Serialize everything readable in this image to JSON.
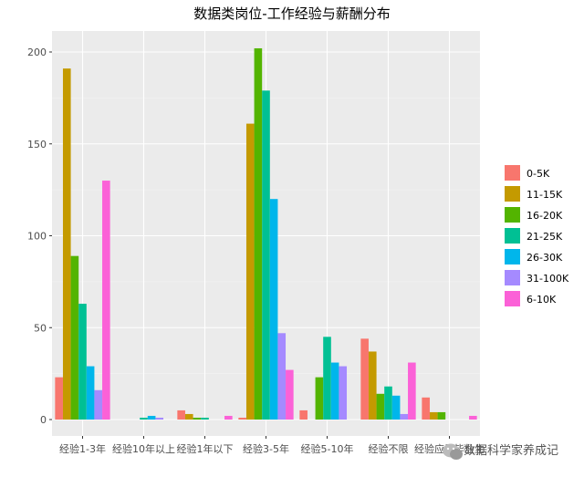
{
  "chart_data": {
    "type": "bar",
    "title": "数据类岗位-工作经验与薪酬分布",
    "xlabel": "",
    "ylabel": "",
    "ylim": [
      0,
      210
    ],
    "yticks": [
      0,
      50,
      100,
      150,
      200
    ],
    "categories": [
      "经验1-3年",
      "经验10年以上",
      "经验1年以下",
      "经验3-5年",
      "经验5-10年",
      "经验不限",
      "经验应届毕业生"
    ],
    "series": [
      {
        "name": "0-5K",
        "color": "#F8766D",
        "values": [
          23,
          0,
          5,
          1,
          5,
          44,
          12
        ]
      },
      {
        "name": "11-15K",
        "color": "#C49A00",
        "values": [
          191,
          0,
          3,
          161,
          0,
          37,
          4
        ]
      },
      {
        "name": "16-20K",
        "color": "#53B400",
        "values": [
          89,
          0,
          1,
          202,
          23,
          14,
          4
        ]
      },
      {
        "name": "21-25K",
        "color": "#00C094",
        "values": [
          63,
          1,
          1,
          179,
          45,
          18,
          0
        ]
      },
      {
        "name": "26-30K",
        "color": "#00B6EB",
        "values": [
          29,
          2,
          0,
          120,
          31,
          13,
          0
        ]
      },
      {
        "name": "31-100K",
        "color": "#A58AFF",
        "values": [
          16,
          1,
          0,
          47,
          29,
          3,
          0
        ]
      },
      {
        "name": "6-10K",
        "color": "#FB61D7",
        "values": [
          130,
          0,
          2,
          27,
          0,
          31,
          2
        ]
      }
    ],
    "grid": true,
    "legend_position": "right",
    "panel_background": "#EBEBEB"
  },
  "watermark": {
    "icon": "wechat-icon",
    "text": "数据科学家养成记"
  }
}
